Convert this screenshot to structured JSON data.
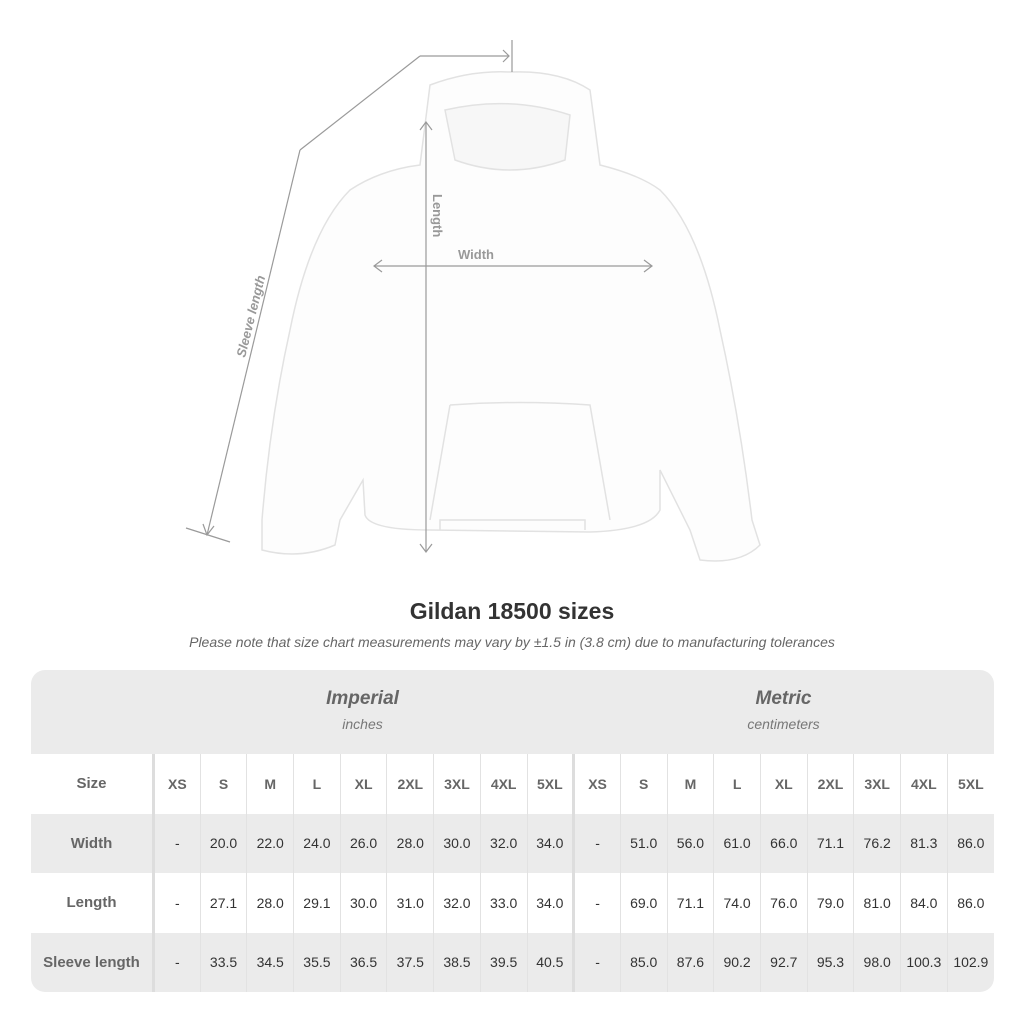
{
  "diagram": {
    "labels": {
      "sleeve": "Sleeve length",
      "length": "Length",
      "width": "Width"
    }
  },
  "title": "Gildan 18500 sizes",
  "note": "Please note that size chart measurements may vary by ±1.5 in (3.8 cm) due to manufacturing tolerances",
  "imperial": {
    "name": "Imperial",
    "unit": "inches"
  },
  "metric": {
    "name": "Metric",
    "unit": "centimeters"
  },
  "header": {
    "label": "Size",
    "sizes": [
      "XS",
      "S",
      "M",
      "L",
      "XL",
      "2XL",
      "3XL",
      "4XL",
      "5XL"
    ]
  },
  "rows": [
    {
      "label": "Width",
      "imperial": [
        "-",
        "20.0",
        "22.0",
        "24.0",
        "26.0",
        "28.0",
        "30.0",
        "32.0",
        "34.0"
      ],
      "metric": [
        "-",
        "51.0",
        "56.0",
        "61.0",
        "66.0",
        "71.1",
        "76.2",
        "81.3",
        "86.0"
      ]
    },
    {
      "label": "Length",
      "imperial": [
        "-",
        "27.1",
        "28.0",
        "29.1",
        "30.0",
        "31.0",
        "32.0",
        "33.0",
        "34.0"
      ],
      "metric": [
        "-",
        "69.0",
        "71.1",
        "74.0",
        "76.0",
        "79.0",
        "81.0",
        "84.0",
        "86.0"
      ]
    },
    {
      "label": "Sleeve length",
      "imperial": [
        "-",
        "33.5",
        "34.5",
        "35.5",
        "36.5",
        "37.5",
        "38.5",
        "39.5",
        "40.5"
      ],
      "metric": [
        "-",
        "85.0",
        "87.6",
        "90.2",
        "92.7",
        "95.3",
        "98.0",
        "100.3",
        "102.9"
      ]
    }
  ]
}
